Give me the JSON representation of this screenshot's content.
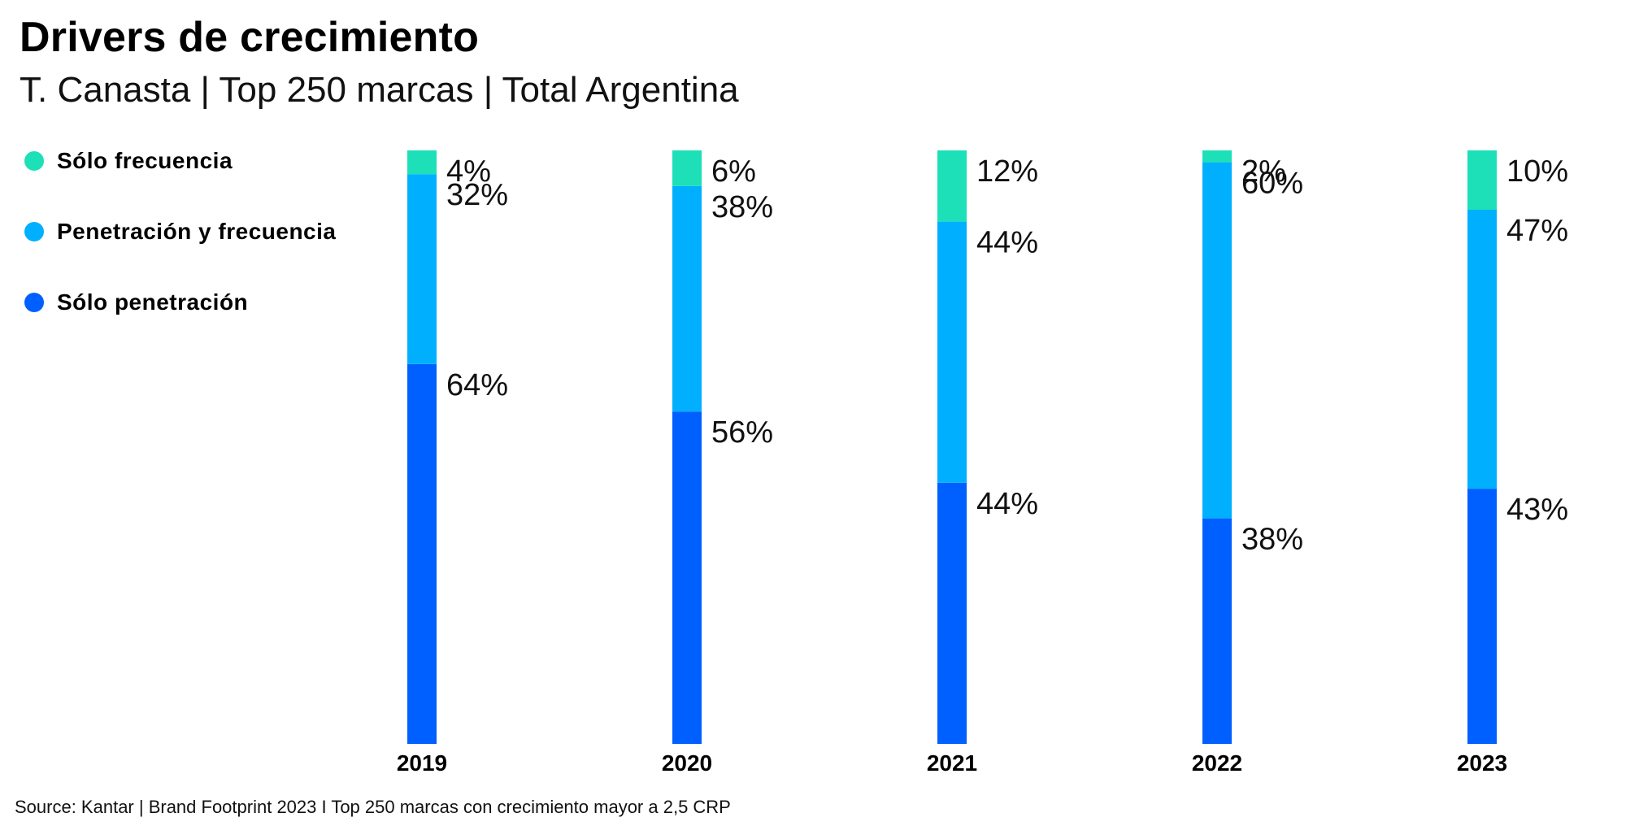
{
  "header": {
    "title": "Drivers de crecimiento",
    "subtitle": "T. Canasta | Top 250 marcas | Total Argentina"
  },
  "legend": [
    {
      "label": "Sólo frecuencia",
      "color": "#1de0b8"
    },
    {
      "label": "Penetración y frecuencia",
      "color": "#00b0ff"
    },
    {
      "label": "Sólo penetración",
      "color": "#0060ff"
    }
  ],
  "footer": {
    "source": "Source: Kantar | Brand Footprint 2023 I Top 250 marcas con crecimiento mayor a 2,5 CRP"
  },
  "chart_data": {
    "type": "bar",
    "stacked": true,
    "categories": [
      "2019",
      "2020",
      "2021",
      "2022",
      "2023"
    ],
    "series": [
      {
        "name": "Sólo penetración",
        "color": "#0060ff",
        "values": [
          64,
          56,
          44,
          38,
          43
        ],
        "labels": [
          "64%",
          "56%",
          "44%",
          "38%",
          "43%"
        ]
      },
      {
        "name": "Penetración y frecuencia",
        "color": "#00b0ff",
        "values": [
          32,
          38,
          44,
          60,
          47
        ],
        "labels": [
          "32%",
          "38%",
          "44%",
          "60%",
          "47%"
        ]
      },
      {
        "name": "Sólo frecuencia",
        "color": "#1de0b8",
        "values": [
          4,
          6,
          12,
          2,
          10
        ],
        "labels": [
          "4%",
          "6%",
          "12%",
          "2%",
          "10%"
        ]
      }
    ],
    "ylim": [
      0,
      100
    ],
    "grid": false,
    "legend_position": "top-left"
  }
}
